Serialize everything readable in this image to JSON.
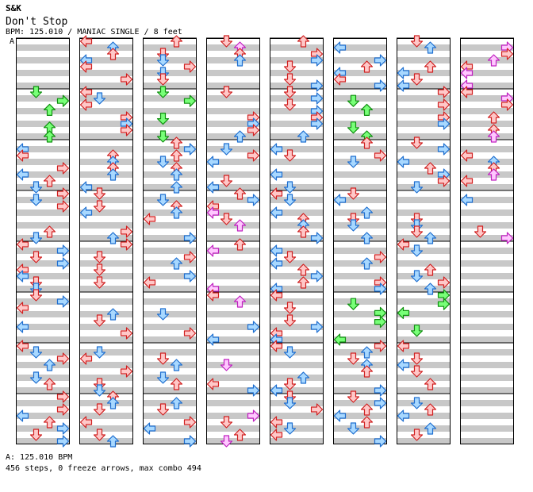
{
  "header": {
    "artist": "S&K",
    "title": "Don't Stop",
    "info": "BPM: 125.010 / MANIAC SINGLE / 8 feet"
  },
  "bpm_marker": "A",
  "footer": {
    "bpm_legend": "A: 125.010 BPM",
    "summary": "456 steps, 0 freeze arrows, max combo 494"
  },
  "colors": {
    "quarter_fill": "#ffc8c8",
    "quarter_edge": "#d02020",
    "eighth_fill": "#a8d8ff",
    "eighth_edge": "#1f6fd0",
    "sixteenth_fill": "#ffc8ff",
    "sixteenth_edge": "#c020c0",
    "triplet_fill": "#78ff78",
    "triplet_edge": "#109010",
    "band": "#c8c8c8",
    "border": "#000000"
  },
  "chart_data": {
    "type": "step-chart",
    "mode": "MANIAC SINGLE",
    "bpm": 125.01,
    "lanes": [
      "left",
      "down",
      "up",
      "right"
    ],
    "columns": 8,
    "measures_per_column": 8,
    "total_measures": 60,
    "total_steps": 456,
    "freeze_arrows": 0,
    "max_combo": 494,
    "note_types": [
      "quarter",
      "eighth",
      "sixteenth",
      "triplet"
    ]
  }
}
